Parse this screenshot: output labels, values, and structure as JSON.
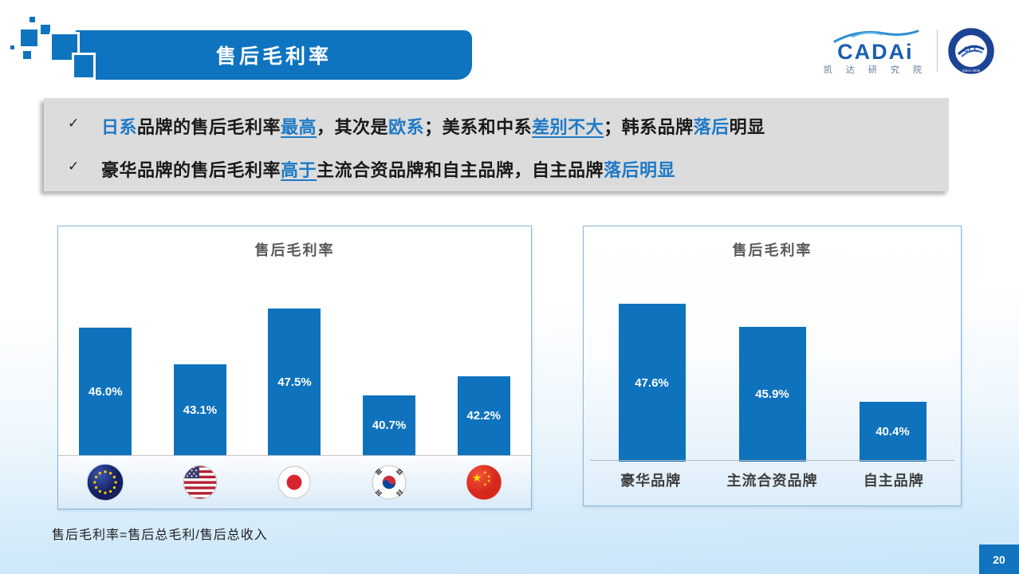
{
  "header": {
    "title": "售后毛利率"
  },
  "logo": {
    "brand": "CADAi",
    "subtitle": "凯 达 研 究 院",
    "badge_bottom_text": "Since 2005"
  },
  "bullets": [
    {
      "marker": "✓",
      "segments": [
        {
          "text": "日系",
          "blue": true,
          "underline": false
        },
        {
          "text": "品牌的售后毛利率",
          "blue": false,
          "underline": false
        },
        {
          "text": "最高",
          "blue": true,
          "underline": true
        },
        {
          "text": "，其次是",
          "blue": false,
          "underline": false
        },
        {
          "text": "欧系",
          "blue": true,
          "underline": false
        },
        {
          "text": "；美系和中系",
          "blue": false,
          "underline": false
        },
        {
          "text": "差别不大",
          "blue": true,
          "underline": true
        },
        {
          "text": "；韩系品牌",
          "blue": false,
          "underline": false
        },
        {
          "text": "落后",
          "blue": true,
          "underline": false
        },
        {
          "text": "明显",
          "blue": false,
          "underline": false
        }
      ]
    },
    {
      "marker": "✓",
      "segments": [
        {
          "text": "豪华品牌的售后毛利率",
          "blue": false,
          "underline": false
        },
        {
          "text": "高于",
          "blue": true,
          "underline": true
        },
        {
          "text": "主流合资品牌和自主品牌，自主品牌",
          "blue": false,
          "underline": false
        },
        {
          "text": "落后明显",
          "blue": true,
          "underline": false
        }
      ]
    }
  ],
  "chart_data": [
    {
      "type": "bar",
      "title": "售后毛利率",
      "categories": [
        "欧系(EU)",
        "美系(USA)",
        "日系(Japan)",
        "韩系(South Korea)",
        "中系(China)"
      ],
      "values": [
        46.0,
        43.1,
        47.5,
        40.7,
        42.2
      ],
      "labels": [
        "46.0%",
        "43.1%",
        "47.5%",
        "40.7%",
        "42.2%"
      ],
      "ylim": [
        36,
        50
      ],
      "bar_color": "#0f72bd",
      "legend": "none",
      "grid": false,
      "note": "category axis shown as country flag icons"
    },
    {
      "type": "bar",
      "title": "售后毛利率",
      "categories": [
        "豪华品牌",
        "主流合资品牌",
        "自主品牌"
      ],
      "values": [
        47.6,
        45.9,
        40.4
      ],
      "labels": [
        "47.6%",
        "45.9%",
        "40.4%"
      ],
      "ylim": [
        36,
        50
      ],
      "bar_color": "#0f72bd",
      "legend": "none",
      "grid": false
    }
  ],
  "footnote": {
    "text": "售后毛利率=售后总毛利/售后总收入"
  },
  "page": {
    "number": "20"
  },
  "colors": {
    "primary_blue": "#0f74c0",
    "bar_blue": "#0f72bd",
    "accent_text_blue": "#1e7ac6",
    "bullet_box_gray": "#dcdcdc",
    "chart_title_gray": "#595959",
    "page_badge_blue": "#1273bf",
    "background_bottom": "#c7e5f8"
  }
}
